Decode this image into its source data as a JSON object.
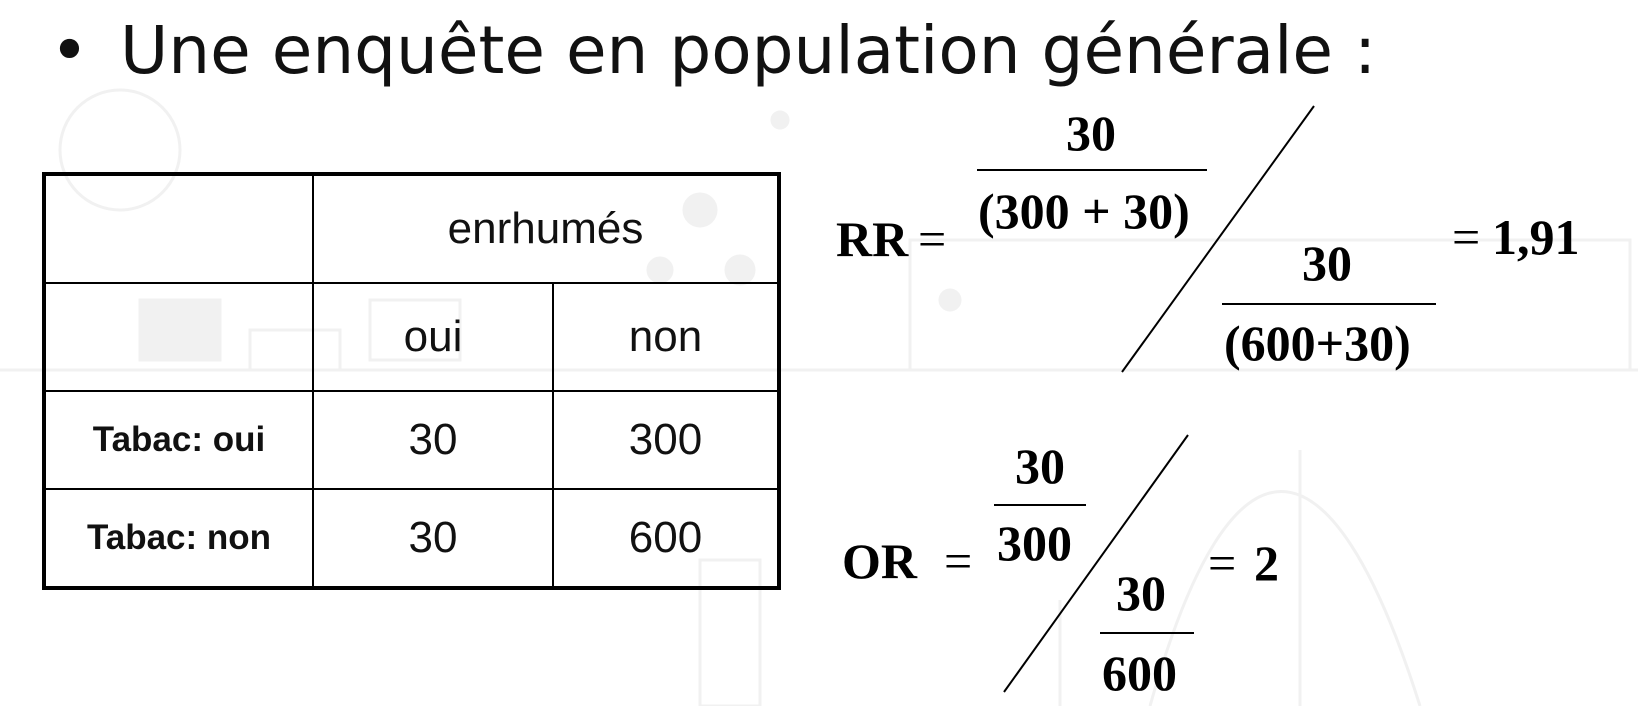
{
  "bullet": {
    "symbol": "•",
    "text": "Une enquête en population générale :"
  },
  "table": {
    "group_header": "enrhumés",
    "sub_headers": [
      "oui",
      "non"
    ],
    "rows": [
      {
        "label": "Tabac: oui",
        "values": [
          "30",
          "300"
        ]
      },
      {
        "label": "Tabac: non",
        "values": [
          "30",
          "600"
        ]
      }
    ]
  },
  "rr": {
    "label": "RR",
    "equals": "=",
    "top_num": "30",
    "top_den": "(300 + 30)",
    "bot_num": "30",
    "bot_den": "(600+30)",
    "result_equals": "=",
    "result": "1,91"
  },
  "or": {
    "label": "OR",
    "equals": "=",
    "top_num": "30",
    "top_den": "300",
    "bot_num": "30",
    "bot_den": "600",
    "result_equals": "=",
    "result": "2"
  }
}
